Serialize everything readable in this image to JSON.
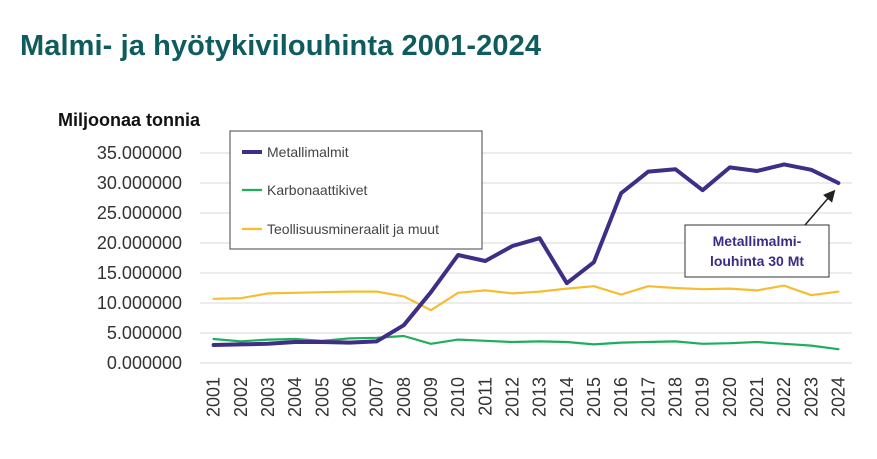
{
  "title": "Malmi- ja hyötykivilouhinta 2001-2024",
  "chart_data": {
    "type": "line",
    "title": "Malmi- ja hyötykivilouhinta 2001-2024",
    "ylabel": "Miljoonaa tonnia",
    "xlabel": "",
    "ylim": [
      0,
      35
    ],
    "yticks": [
      "0.000000",
      "5.000000",
      "10.000000",
      "15.000000",
      "20.000000",
      "25.000000",
      "30.000000",
      "35.000000"
    ],
    "x": [
      "2001",
      "2002",
      "2003",
      "2004",
      "2005",
      "2006",
      "2007",
      "2008",
      "2009",
      "2010",
      "2011",
      "2012",
      "2013",
      "2014",
      "2015",
      "2016",
      "2017",
      "2018",
      "2019",
      "2020",
      "2021",
      "2022",
      "2023",
      "2024"
    ],
    "grid": "horizontal",
    "legend_position": "top-left",
    "series": [
      {
        "name": "Metallimalmit",
        "color": "#3f2e86",
        "values": [
          3.0,
          3.1,
          3.2,
          3.5,
          3.5,
          3.4,
          3.6,
          6.3,
          11.8,
          18.0,
          17.0,
          19.5,
          20.8,
          13.3,
          16.8,
          28.3,
          31.9,
          32.3,
          28.8,
          32.6,
          32.0,
          33.1,
          32.2,
          30.0
        ]
      },
      {
        "name": "Karbonaattikivet",
        "color": "#1fae5b",
        "values": [
          4.0,
          3.6,
          3.9,
          4.0,
          3.7,
          4.1,
          4.2,
          4.5,
          3.2,
          3.9,
          3.7,
          3.5,
          3.6,
          3.5,
          3.1,
          3.4,
          3.5,
          3.6,
          3.2,
          3.3,
          3.5,
          3.2,
          2.9,
          2.3
        ]
      },
      {
        "name": "Teollisuusmineraalit ja muut",
        "color": "#f5bd32",
        "values": [
          10.7,
          10.8,
          11.6,
          11.7,
          11.8,
          11.9,
          11.9,
          11.1,
          8.8,
          11.7,
          12.1,
          11.6,
          11.9,
          12.4,
          12.8,
          11.4,
          12.8,
          12.5,
          12.3,
          12.4,
          12.1,
          12.9,
          11.3,
          11.9
        ]
      }
    ],
    "annotation": {
      "text_line1": "Metallimalmi-",
      "text_line2": "louhinta 30 Mt",
      "target_year": "2024",
      "target_value": 30.0
    }
  }
}
